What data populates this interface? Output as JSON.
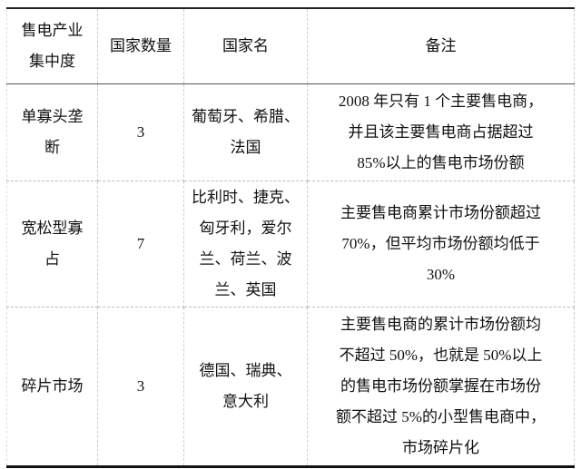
{
  "headers": [
    [
      "售电产业",
      "集中度"
    ],
    [
      "国家数量"
    ],
    [
      "国家名"
    ],
    [
      "备注"
    ]
  ],
  "rows": [
    {
      "level": [
        "单寡头垄",
        "断"
      ],
      "count": "3",
      "countries": [
        "葡萄牙、希腊、",
        "法国"
      ],
      "note": [
        "2008 年只有 1 个主要售电商，",
        "并且该主要售电商占据超过",
        "85%以上的售电市场份额"
      ]
    },
    {
      "level": [
        "宽松型寡",
        "占"
      ],
      "count": "7",
      "countries": [
        "比利时、捷克、",
        "匈牙利，爱尔",
        "兰、荷兰、波",
        "兰、英国"
      ],
      "note": [
        "主要售电商累计市场份额超过",
        "70%，但平均市场份额均低于",
        "30%"
      ]
    },
    {
      "level": [
        "碎片市场"
      ],
      "count": "3",
      "countries": [
        "德国、瑞典、",
        "意大利"
      ],
      "note": [
        "主要售电商的累计市场份额均",
        "不超过 50%，也就是 50%以上",
        "的售电市场份额掌握在市场份",
        "额不超过 5%的小型售电商中，",
        "市场碎片化"
      ]
    }
  ]
}
